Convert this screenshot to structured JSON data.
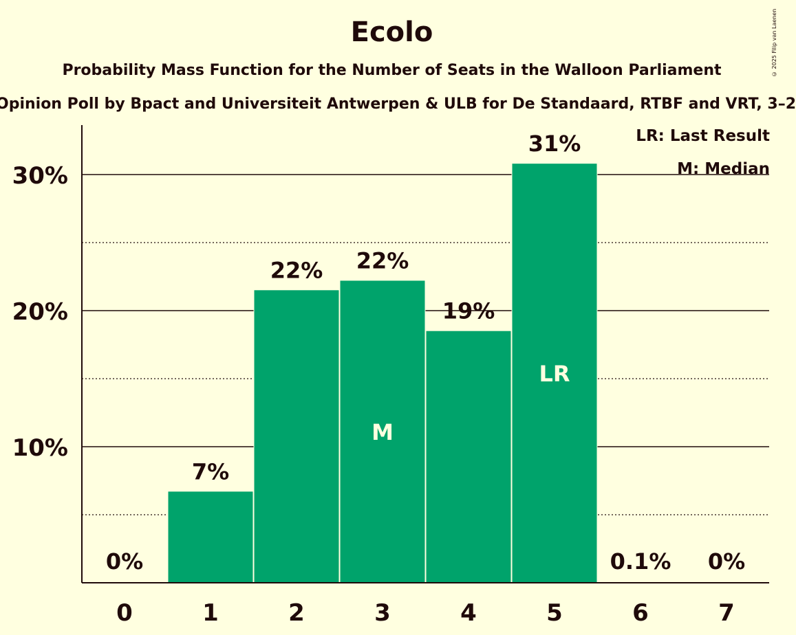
{
  "title": "Ecolo",
  "subtitle": "Probability Mass Function for the Number of Seats in the Walloon Parliament",
  "subtitle2": "Opinion Poll by Bpact and Universiteit Antwerpen & ULB for De Standaard, RTBF and VRT, 3–2",
  "copyright": "© 2025 Filip van Laenen",
  "legend": {
    "last_result": "LR: Last Result",
    "median": "M: Median"
  },
  "colors": {
    "background": "#ffffe0",
    "bar": "#00a36b",
    "text": "#1f0a0a",
    "bar_label": "#ffffe0"
  },
  "chart_data": {
    "type": "bar",
    "categories": [
      "0",
      "1",
      "2",
      "3",
      "4",
      "5",
      "6",
      "7"
    ],
    "values": [
      0,
      6.7,
      21.5,
      22.2,
      18.5,
      30.8,
      0.1,
      0
    ],
    "value_labels": [
      "0%",
      "7%",
      "22%",
      "22%",
      "19%",
      "31%",
      "0.1%",
      "0%"
    ],
    "bar_markers": {
      "3": "M",
      "5": "LR"
    },
    "ylim": [
      0,
      33.5
    ],
    "yticks": [
      10,
      20,
      30
    ],
    "ytick_labels": [
      "10%",
      "20%",
      "30%"
    ],
    "minor_gridlines": [
      5,
      15,
      25
    ],
    "grid": true,
    "legend_position": "top-right"
  }
}
